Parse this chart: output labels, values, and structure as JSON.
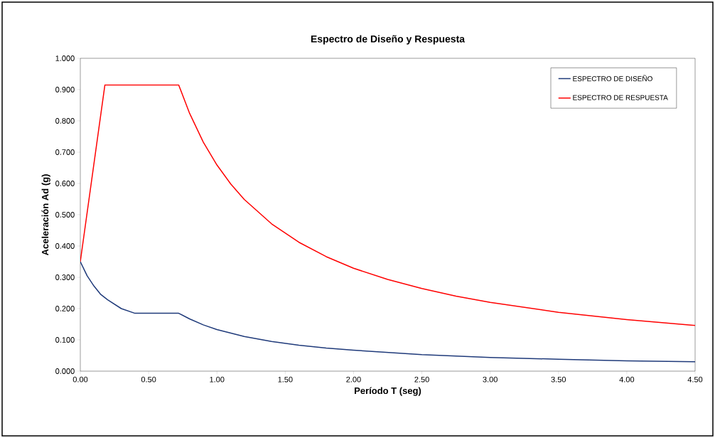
{
  "chart_data": {
    "type": "line",
    "title": "Espectro de Diseño y Respuesta",
    "xlabel": "Período T (seg)",
    "ylabel": "Aceleración Ad (g)",
    "xlim": [
      0,
      4.5
    ],
    "ylim": [
      0,
      1.0
    ],
    "xticks": [
      {
        "value": 0,
        "label": "0.00"
      },
      {
        "value": 0.5,
        "label": "0.50"
      },
      {
        "value": 1,
        "label": "1.00"
      },
      {
        "value": 1.5,
        "label": "1.50"
      },
      {
        "value": 2,
        "label": "2.00"
      },
      {
        "value": 2.5,
        "label": "2.50"
      },
      {
        "value": 3,
        "label": "3.00"
      },
      {
        "value": 3.5,
        "label": "3.50"
      },
      {
        "value": 4,
        "label": "4.00"
      },
      {
        "value": 4.5,
        "label": "4.50"
      }
    ],
    "yticks": [
      {
        "value": 0,
        "label": "0.000"
      },
      {
        "value": 0.1,
        "label": "0.100"
      },
      {
        "value": 0.2,
        "label": "0.200"
      },
      {
        "value": 0.3,
        "label": "0.300"
      },
      {
        "value": 0.4,
        "label": "0.400"
      },
      {
        "value": 0.5,
        "label": "0.500"
      },
      {
        "value": 0.6,
        "label": "0.600"
      },
      {
        "value": 0.7,
        "label": "0.700"
      },
      {
        "value": 0.8,
        "label": "0.800"
      },
      {
        "value": 0.9,
        "label": "0.900"
      },
      {
        "value": 1.0,
        "label": "1.000"
      }
    ],
    "grid": false,
    "legend": "top right",
    "marker": "none",
    "line_style": "solid",
    "series": [
      {
        "name": "ESPECTRO DE DISEÑO",
        "color": "#1f3a7a",
        "x": [
          0,
          0.05,
          0.1,
          0.15,
          0.2,
          0.3,
          0.4,
          0.72,
          0.8,
          0.9,
          1.0,
          1.2,
          1.4,
          1.6,
          1.8,
          2.0,
          2.5,
          3.0,
          3.5,
          4.0,
          4.5
        ],
        "values": [
          0.35,
          0.305,
          0.272,
          0.245,
          0.228,
          0.2,
          0.185,
          0.185,
          0.167,
          0.148,
          0.133,
          0.111,
          0.095,
          0.083,
          0.074,
          0.067,
          0.053,
          0.044,
          0.038,
          0.033,
          0.03
        ]
      },
      {
        "name": "ESPECTRO DE RESPUESTA",
        "color": "#ff0000",
        "x": [
          0,
          0.18,
          0.72,
          0.8,
          0.9,
          1.0,
          1.1,
          1.2,
          1.4,
          1.6,
          1.8,
          2.0,
          2.25,
          2.5,
          2.75,
          3.0,
          3.5,
          4.0,
          4.5
        ],
        "values": [
          0.35,
          0.915,
          0.915,
          0.824,
          0.732,
          0.659,
          0.599,
          0.549,
          0.471,
          0.412,
          0.366,
          0.329,
          0.293,
          0.264,
          0.24,
          0.22,
          0.188,
          0.165,
          0.146
        ]
      }
    ]
  }
}
